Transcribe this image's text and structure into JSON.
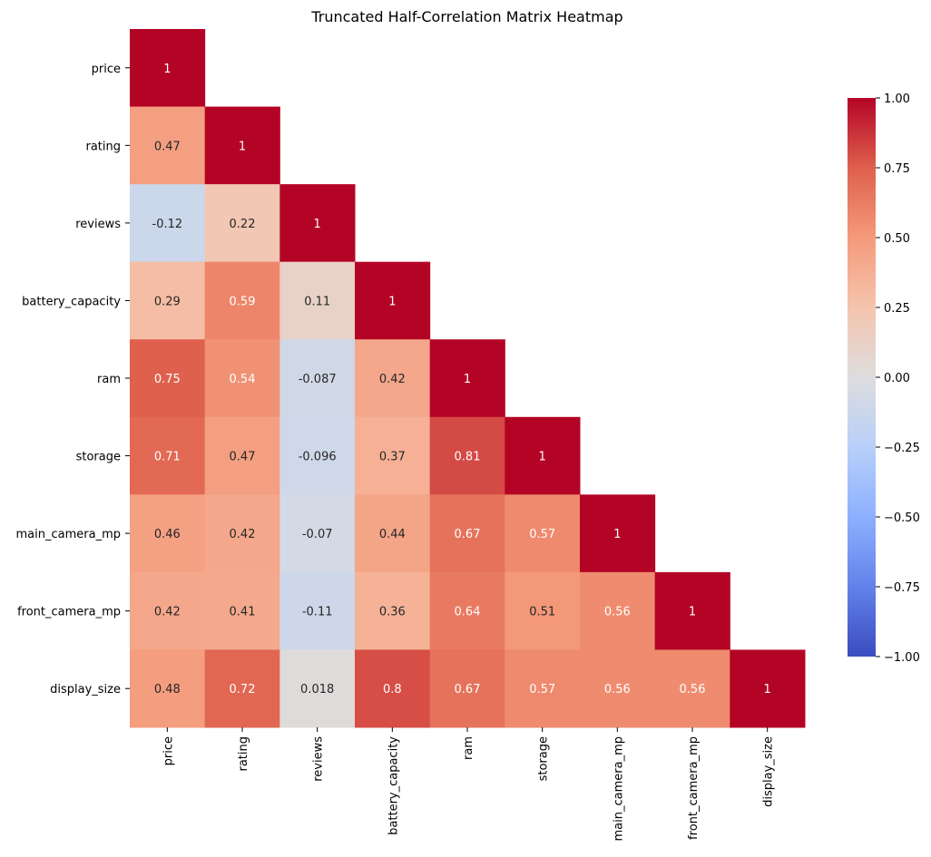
{
  "chart_data": {
    "type": "heatmap",
    "title": "Truncated Half-Correlation Matrix Heatmap",
    "xlabel": "",
    "ylabel": "",
    "colormap": "coolwarm",
    "vmin": -1.0,
    "vmax": 1.0,
    "mask": "upper triangle (above diagonal) hidden",
    "row_labels": [
      "price",
      "rating",
      "reviews",
      "battery_capacity",
      "ram",
      "storage",
      "main_camera_mp",
      "front_camera_mp",
      "display_size"
    ],
    "col_labels": [
      "price",
      "rating",
      "reviews",
      "battery_capacity",
      "ram",
      "storage",
      "main_camera_mp",
      "front_camera_mp",
      "display_size"
    ],
    "values": [
      [
        1
      ],
      [
        0.47,
        1
      ],
      [
        -0.12,
        0.22,
        1
      ],
      [
        0.29,
        0.59,
        0.11,
        1
      ],
      [
        0.75,
        0.54,
        -0.087,
        0.42,
        1
      ],
      [
        0.71,
        0.47,
        -0.096,
        0.37,
        0.81,
        1
      ],
      [
        0.46,
        0.42,
        -0.07,
        0.44,
        0.67,
        0.57,
        1
      ],
      [
        0.42,
        0.41,
        -0.11,
        0.36,
        0.64,
        0.51,
        0.56,
        1
      ],
      [
        0.48,
        0.72,
        0.018,
        0.8,
        0.67,
        0.57,
        0.56,
        0.56,
        1
      ]
    ],
    "annotations": [
      [
        "1"
      ],
      [
        "0.47",
        "1"
      ],
      [
        "-0.12",
        "0.22",
        "1"
      ],
      [
        "0.29",
        "0.59",
        "0.11",
        "1"
      ],
      [
        "0.75",
        "0.54",
        "-0.087",
        "0.42",
        "1"
      ],
      [
        "0.71",
        "0.47",
        "-0.096",
        "0.37",
        "0.81",
        "1"
      ],
      [
        "0.46",
        "0.42",
        "-0.07",
        "0.44",
        "0.67",
        "0.57",
        "1"
      ],
      [
        "0.42",
        "0.41",
        "-0.11",
        "0.36",
        "0.64",
        "0.51",
        "0.56",
        "1"
      ],
      [
        "0.48",
        "0.72",
        "0.018",
        "0.8",
        "0.67",
        "0.57",
        "0.56",
        "0.56",
        "1"
      ]
    ],
    "colorbar": {
      "ticks": [
        1.0,
        0.75,
        0.5,
        0.25,
        0.0,
        -0.25,
        -0.5,
        -0.75,
        -1.0
      ],
      "tick_labels": [
        "1.00",
        "0.75",
        "0.50",
        "0.25",
        "0.00",
        "−0.25",
        "−0.50",
        "−0.75",
        "−1.00"
      ]
    }
  }
}
